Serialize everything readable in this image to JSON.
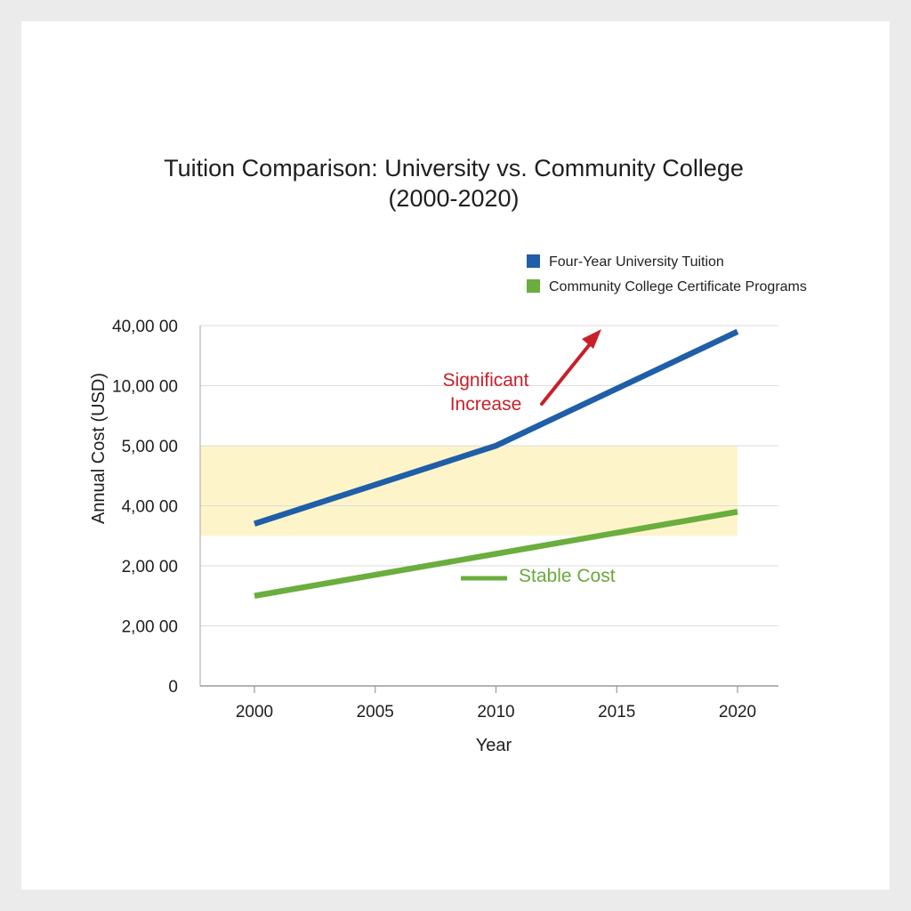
{
  "chart_data": {
    "type": "line",
    "title": [
      "Tuition Comparison: University vs. Community College",
      "(2000-2020)"
    ],
    "xlabel": "Year",
    "ylabel": "Annual Cost (USD)",
    "x": [
      2000,
      2005,
      2010,
      2015,
      2020
    ],
    "x_ticks": [
      "2000",
      "2005",
      "2010",
      "2015",
      "2020"
    ],
    "y_ticks": [
      "0",
      "2,00 00",
      "2,00 00",
      "4,00 00",
      "5,00 00",
      "10,00 00",
      "40,00 00"
    ],
    "series": [
      {
        "name": "Four-Year University Tuition",
        "color": "#1f5ea8",
        "x": [
          2000,
          2010,
          2020
        ],
        "y_level": [
          2.7,
          4.0,
          5.9
        ]
      },
      {
        "name": "Community College Certificate Programs",
        "color": "#6aae3e",
        "x": [
          2000,
          2010,
          2020
        ],
        "y_level": [
          1.5,
          2.2,
          2.9
        ]
      }
    ],
    "highlight_band": {
      "color": "#fdf5c9",
      "y_level": [
        2.5,
        4.0
      ]
    },
    "annotations": [
      {
        "text": [
          "Significant",
          "Increase"
        ],
        "color": "#c8202a",
        "arrow": true
      },
      {
        "text": [
          "Stable Cost"
        ],
        "color": "#6aa83a"
      }
    ],
    "grid": true,
    "legend_position": "top-right"
  }
}
